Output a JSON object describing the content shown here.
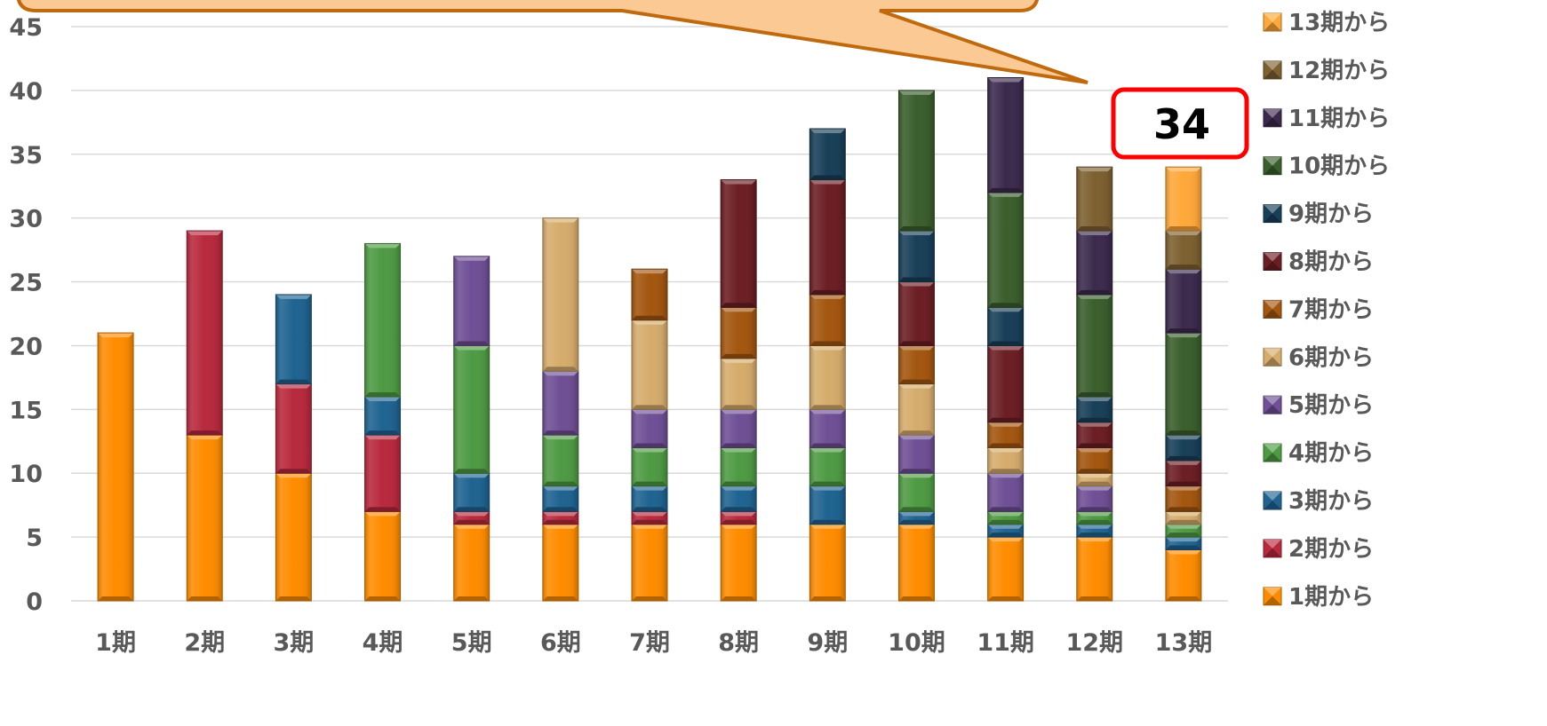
{
  "chart_data": {
    "type": "bar",
    "stacked": true,
    "categories": [
      "1期",
      "2期",
      "3期",
      "4期",
      "5期",
      "6期",
      "7期",
      "8期",
      "9期",
      "10期",
      "11期",
      "12期",
      "13期"
    ],
    "ylim": [
      0,
      45
    ],
    "yticks": [
      0,
      5,
      10,
      15,
      20,
      25,
      30,
      35,
      40,
      45
    ],
    "grid": true,
    "legend_position": "right",
    "series": [
      {
        "name": "1期から",
        "color": "#FF8C00",
        "values": [
          21,
          13,
          10,
          7,
          6,
          6,
          6,
          6,
          6,
          6,
          5,
          5,
          4
        ]
      },
      {
        "name": "2期から",
        "color": "#B8293D",
        "values": [
          0,
          16,
          7,
          6,
          1,
          1,
          1,
          1,
          0,
          0,
          0,
          0,
          0
        ]
      },
      {
        "name": "3期から",
        "color": "#1F6391",
        "values": [
          0,
          0,
          7,
          3,
          3,
          2,
          2,
          2,
          3,
          1,
          1,
          1,
          1
        ]
      },
      {
        "name": "4期から",
        "color": "#4E9A43",
        "values": [
          0,
          0,
          0,
          12,
          10,
          4,
          3,
          3,
          3,
          3,
          1,
          1,
          1
        ]
      },
      {
        "name": "5期から",
        "color": "#6F4F95",
        "values": [
          0,
          0,
          0,
          0,
          7,
          5,
          3,
          3,
          3,
          3,
          3,
          2,
          0
        ]
      },
      {
        "name": "6期から",
        "color": "#D6AC6C",
        "values": [
          0,
          0,
          0,
          0,
          0,
          12,
          7,
          4,
          5,
          4,
          2,
          1,
          1
        ]
      },
      {
        "name": "7期から",
        "color": "#A3560F",
        "values": [
          0,
          0,
          0,
          0,
          0,
          0,
          4,
          4,
          4,
          3,
          2,
          2,
          2
        ]
      },
      {
        "name": "8期から",
        "color": "#6B1E24",
        "values": [
          0,
          0,
          0,
          0,
          0,
          0,
          0,
          10,
          9,
          5,
          6,
          2,
          2
        ]
      },
      {
        "name": "9期から",
        "color": "#183F58",
        "values": [
          0,
          0,
          0,
          0,
          0,
          0,
          0,
          0,
          4,
          4,
          3,
          2,
          2
        ]
      },
      {
        "name": "10期から",
        "color": "#3A5E2C",
        "values": [
          0,
          0,
          0,
          0,
          0,
          0,
          0,
          0,
          0,
          11,
          9,
          8,
          8
        ]
      },
      {
        "name": "11期から",
        "color": "#3C2A4D",
        "values": [
          0,
          0,
          0,
          0,
          0,
          0,
          0,
          0,
          0,
          0,
          9,
          5,
          5
        ]
      },
      {
        "name": "12期から",
        "color": "#7D6030",
        "values": [
          0,
          0,
          0,
          0,
          0,
          0,
          0,
          0,
          0,
          0,
          0,
          5,
          3
        ]
      },
      {
        "name": "13期から",
        "color": "#FFA83A",
        "values": [
          0,
          0,
          0,
          0,
          0,
          0,
          0,
          0,
          0,
          0,
          0,
          0,
          5
        ]
      }
    ],
    "annotation": {
      "text": "34"
    }
  }
}
